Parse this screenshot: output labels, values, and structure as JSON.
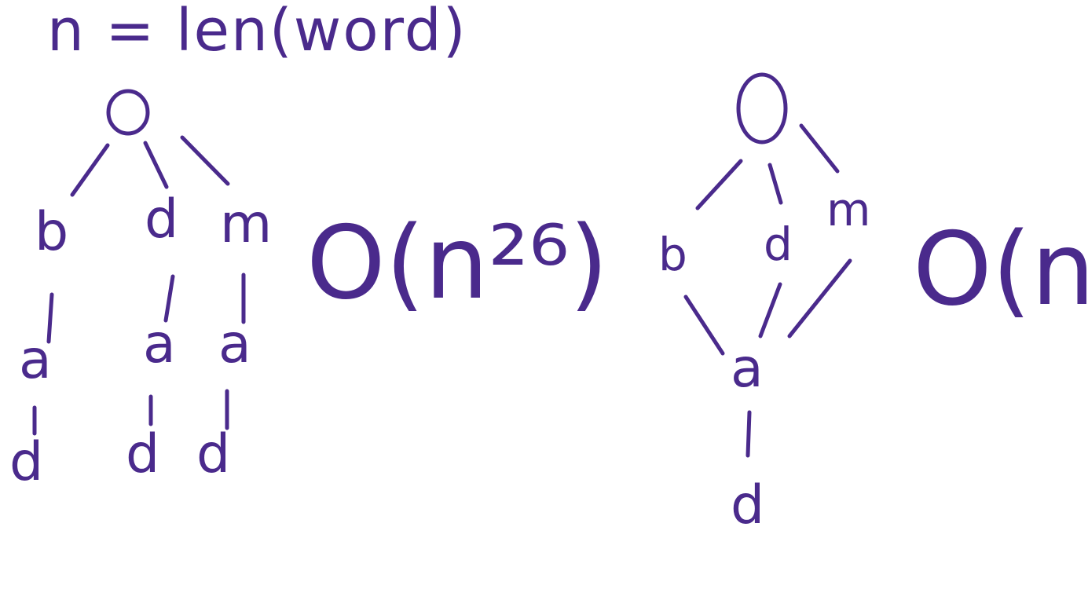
{
  "formula": "n = len(word)",
  "left_diagram": {
    "level1": [
      "b",
      "d",
      "m"
    ],
    "level2": [
      "a",
      "a",
      "a"
    ],
    "level3": [
      "d",
      "d",
      "d"
    ],
    "complexity": "O(n²⁶)"
  },
  "right_diagram": {
    "level1": [
      "b",
      "d",
      "m"
    ],
    "shared_child": "a",
    "leaf": "d",
    "complexity": "O(n)"
  },
  "ink_color": "#4a2a8c"
}
